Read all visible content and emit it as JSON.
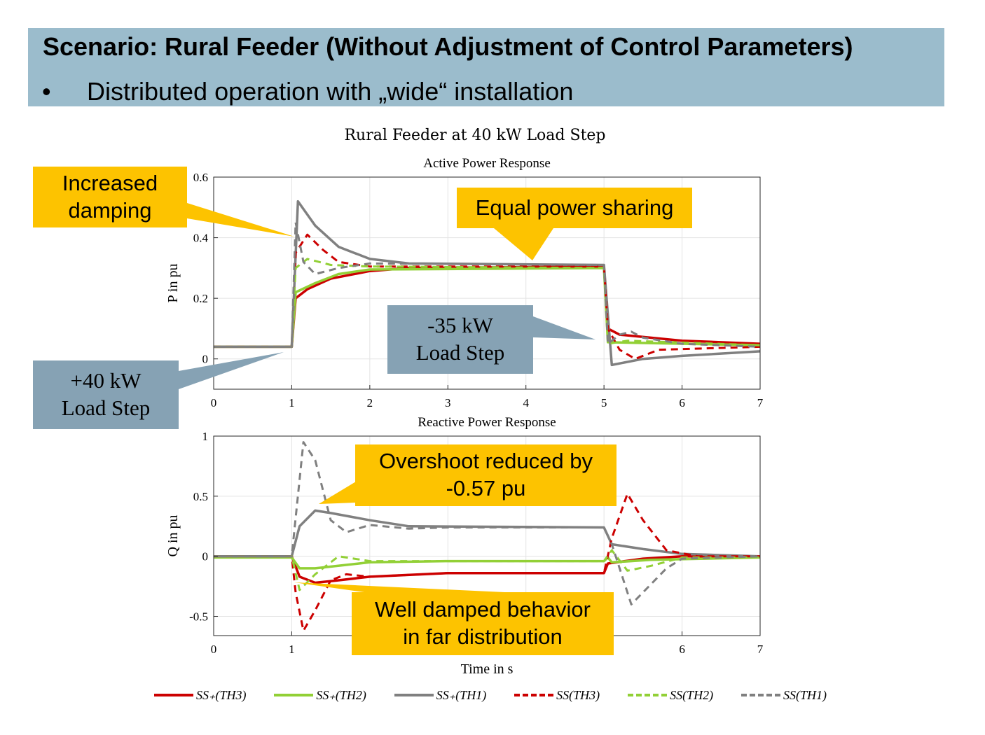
{
  "header": {
    "title": "Scenario: Rural Feeder (Without Adjustment of Control Parameters)",
    "bullet": "•",
    "subtitle": "Distributed operation with „wide“ installation"
  },
  "colors": {
    "header_bg": "#9bbccc",
    "callout_yellow": "#fdc300",
    "callout_blue": "#86a2b4",
    "red": "#cc0000",
    "green": "#92d036",
    "gray": "#808080"
  },
  "figure_title": "Rural Feeder at 40 kW Load Step",
  "callouts": {
    "increased_damping": [
      "Increased",
      "damping"
    ],
    "equal_sharing": "Equal power sharing",
    "minus35": [
      "-35 kW",
      "Load Step"
    ],
    "plus40": [
      "+40 kW",
      "Load Step"
    ],
    "overshoot": [
      "Overshoot reduced by",
      "-0.57 pu"
    ],
    "well_damped": [
      "Well damped behavior",
      "in far distribution"
    ]
  },
  "chart_data": [
    {
      "type": "line",
      "title": "Active Power Response",
      "xlabel": "",
      "ylabel": "P in pu",
      "xlim": [
        0,
        7
      ],
      "ylim": [
        -0.1,
        0.6
      ],
      "xticks": [
        0,
        1,
        2,
        3,
        4,
        5,
        6,
        7
      ],
      "yticks": [
        0,
        0.2,
        0.4,
        0.6
      ],
      "ytick_labels": [
        "0",
        "0.2",
        "0.4",
        "0.6"
      ],
      "grid": true,
      "series": [
        {
          "name": "SS₊(TH3)",
          "color": "#cc0000",
          "dash": "solid",
          "points": [
            [
              0,
              0.04
            ],
            [
              1,
              0.04
            ],
            [
              1.05,
              0.2
            ],
            [
              1.2,
              0.23
            ],
            [
              1.5,
              0.265
            ],
            [
              2,
              0.29
            ],
            [
              2.5,
              0.3
            ],
            [
              5,
              0.305
            ],
            [
              5.05,
              0.1
            ],
            [
              5.2,
              0.08
            ],
            [
              6,
              0.06
            ],
            [
              7,
              0.05
            ]
          ]
        },
        {
          "name": "SS₊(TH2)",
          "color": "#92d036",
          "dash": "solid",
          "points": [
            [
              0,
              0.04
            ],
            [
              1,
              0.04
            ],
            [
              1.05,
              0.22
            ],
            [
              1.3,
              0.25
            ],
            [
              1.6,
              0.28
            ],
            [
              2,
              0.295
            ],
            [
              5,
              0.3
            ],
            [
              5.05,
              0.055
            ],
            [
              7,
              0.045
            ]
          ]
        },
        {
          "name": "SS₊(TH1)",
          "color": "#808080",
          "dash": "solid",
          "points": [
            [
              0,
              0.04
            ],
            [
              1,
              0.04
            ],
            [
              1.08,
              0.52
            ],
            [
              1.3,
              0.44
            ],
            [
              1.6,
              0.37
            ],
            [
              2,
              0.33
            ],
            [
              2.5,
              0.315
            ],
            [
              5,
              0.31
            ],
            [
              5.1,
              -0.02
            ],
            [
              5.5,
              0.0
            ],
            [
              6,
              0.01
            ],
            [
              7,
              0.025
            ]
          ]
        },
        {
          "name": "SS(TH3)",
          "color": "#cc0000",
          "dash": "dashed",
          "points": [
            [
              0,
              0.04
            ],
            [
              1,
              0.04
            ],
            [
              1.05,
              0.35
            ],
            [
              1.2,
              0.41
            ],
            [
              1.4,
              0.36
            ],
            [
              1.6,
              0.32
            ],
            [
              2,
              0.305
            ],
            [
              5,
              0.305
            ],
            [
              5.05,
              0.1
            ],
            [
              5.2,
              0.03
            ],
            [
              5.4,
              0.0
            ],
            [
              5.7,
              0.03
            ],
            [
              7,
              0.04
            ]
          ]
        },
        {
          "name": "SS(TH2)",
          "color": "#92d036",
          "dash": "dashed",
          "points": [
            [
              0,
              0.04
            ],
            [
              1,
              0.04
            ],
            [
              1.05,
              0.3
            ],
            [
              1.2,
              0.33
            ],
            [
              1.5,
              0.31
            ],
            [
              2,
              0.305
            ],
            [
              5,
              0.3
            ],
            [
              5.05,
              0.05
            ],
            [
              5.3,
              0.06
            ],
            [
              7,
              0.045
            ]
          ]
        },
        {
          "name": "SS(TH1)",
          "color": "#808080",
          "dash": "dashed",
          "points": [
            [
              0,
              0.04
            ],
            [
              1,
              0.04
            ],
            [
              1.05,
              0.45
            ],
            [
              1.15,
              0.32
            ],
            [
              1.3,
              0.28
            ],
            [
              1.6,
              0.3
            ],
            [
              2,
              0.315
            ],
            [
              5,
              0.31
            ],
            [
              5.05,
              0.05
            ],
            [
              5.2,
              0.08
            ],
            [
              5.35,
              0.09
            ],
            [
              5.5,
              0.07
            ],
            [
              6,
              0.05
            ],
            [
              7,
              0.04
            ]
          ]
        }
      ]
    },
    {
      "type": "line",
      "title": "Reactive Power Response",
      "xlabel": "Time in s",
      "ylabel": "Q in pu",
      "xlim": [
        0,
        7
      ],
      "ylim": [
        -0.66,
        1
      ],
      "xticks": [
        0,
        1,
        6,
        7
      ],
      "yticks": [
        -0.5,
        0,
        0.5,
        1
      ],
      "ytick_labels": [
        "-0.5",
        "0",
        "0.5",
        "1"
      ],
      "grid": true,
      "series": [
        {
          "name": "SS₊(TH3)",
          "color": "#cc0000",
          "dash": "solid",
          "points": [
            [
              0,
              0
            ],
            [
              1,
              0
            ],
            [
              1.1,
              -0.17
            ],
            [
              1.3,
              -0.22
            ],
            [
              1.6,
              -0.2
            ],
            [
              2,
              -0.17
            ],
            [
              3,
              -0.14
            ],
            [
              5,
              -0.14
            ],
            [
              5.05,
              -0.06
            ],
            [
              5.5,
              -0.02
            ],
            [
              6,
              0
            ],
            [
              7,
              0
            ]
          ]
        },
        {
          "name": "SS₊(TH2)",
          "color": "#92d036",
          "dash": "solid",
          "points": [
            [
              0,
              -0.01
            ],
            [
              1,
              -0.01
            ],
            [
              1.1,
              -0.1
            ],
            [
              1.3,
              -0.1
            ],
            [
              2,
              -0.05
            ],
            [
              3,
              -0.04
            ],
            [
              5,
              -0.04
            ],
            [
              5.05,
              -0.01
            ],
            [
              5.1,
              -0.05
            ],
            [
              5.6,
              -0.03
            ],
            [
              7,
              -0.01
            ]
          ]
        },
        {
          "name": "SS₊(TH1)",
          "color": "#808080",
          "dash": "solid",
          "points": [
            [
              0,
              0
            ],
            [
              1,
              0
            ],
            [
              1.1,
              0.25
            ],
            [
              1.3,
              0.38
            ],
            [
              1.5,
              0.36
            ],
            [
              2,
              0.3
            ],
            [
              2.5,
              0.25
            ],
            [
              5,
              0.24
            ],
            [
              5.1,
              0.1
            ],
            [
              5.5,
              0.06
            ],
            [
              6,
              0.02
            ],
            [
              7,
              0
            ]
          ]
        },
        {
          "name": "SS(TH3)",
          "color": "#cc0000",
          "dash": "dashed",
          "points": [
            [
              0,
              0
            ],
            [
              1,
              0
            ],
            [
              1.05,
              -0.3
            ],
            [
              1.15,
              -0.62
            ],
            [
              1.3,
              -0.45
            ],
            [
              1.5,
              -0.2
            ],
            [
              1.7,
              -0.15
            ],
            [
              2,
              -0.17
            ],
            [
              3,
              -0.14
            ],
            [
              5,
              -0.14
            ],
            [
              5.1,
              0.15
            ],
            [
              5.3,
              0.52
            ],
            [
              5.5,
              0.3
            ],
            [
              5.8,
              0.05
            ],
            [
              6.2,
              0
            ],
            [
              7,
              0
            ]
          ]
        },
        {
          "name": "SS(TH2)",
          "color": "#92d036",
          "dash": "dashed",
          "points": [
            [
              0,
              0
            ],
            [
              1,
              0
            ],
            [
              1.1,
              -0.28
            ],
            [
              1.3,
              -0.15
            ],
            [
              1.6,
              0
            ],
            [
              1.8,
              -0.02
            ],
            [
              2,
              -0.04
            ],
            [
              5,
              -0.04
            ],
            [
              5.1,
              0.05
            ],
            [
              5.3,
              -0.12
            ],
            [
              5.6,
              -0.08
            ],
            [
              6,
              -0.01
            ],
            [
              7,
              -0.01
            ]
          ]
        },
        {
          "name": "SS(TH1)",
          "color": "#808080",
          "dash": "dashed",
          "points": [
            [
              0,
              0
            ],
            [
              1,
              0
            ],
            [
              1.15,
              0.95
            ],
            [
              1.3,
              0.8
            ],
            [
              1.5,
              0.3
            ],
            [
              1.7,
              0.2
            ],
            [
              2,
              0.26
            ],
            [
              2.5,
              0.23
            ],
            [
              3,
              0.24
            ],
            [
              5,
              0.24
            ],
            [
              5.1,
              0.1
            ],
            [
              5.25,
              -0.2
            ],
            [
              5.35,
              -0.4
            ],
            [
              5.5,
              -0.3
            ],
            [
              5.8,
              -0.1
            ],
            [
              6,
              -0.02
            ],
            [
              7,
              0
            ]
          ]
        }
      ]
    }
  ],
  "legend": [
    {
      "name": "SS₊(TH3)",
      "color": "#cc0000",
      "dash": "solid"
    },
    {
      "name": "SS₊(TH2)",
      "color": "#92d036",
      "dash": "solid"
    },
    {
      "name": "SS₊(TH1)",
      "color": "#808080",
      "dash": "solid"
    },
    {
      "name": "SS(TH3)",
      "color": "#cc0000",
      "dash": "dashed"
    },
    {
      "name": "SS(TH2)",
      "color": "#92d036",
      "dash": "dashed"
    },
    {
      "name": "SS(TH1)",
      "color": "#808080",
      "dash": "dashed"
    }
  ]
}
